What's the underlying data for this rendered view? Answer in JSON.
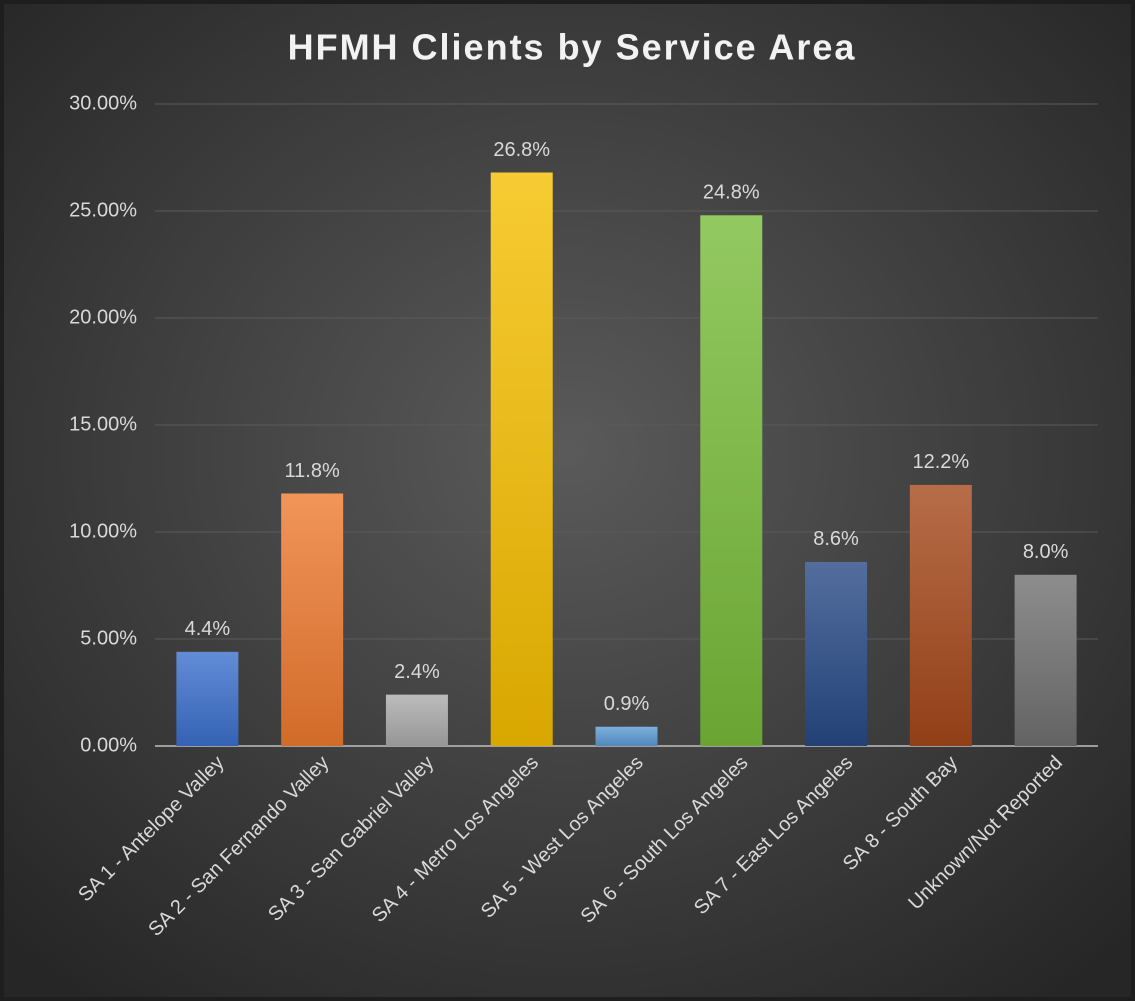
{
  "chart_data": {
    "type": "bar",
    "title": "HFMH Clients by Service Area",
    "categories": [
      "SA 1 - Antelope Valley",
      "SA 2 - San Fernando Valley",
      "SA 3 - San Gabriel Valley",
      "SA 4 - Metro Los Angeles",
      "SA 5 - West Los Angeles",
      "SA 6 - South Los Angeles",
      "SA 7 - East Los Angeles",
      "SA 8 - South Bay",
      "Unknown/Not Reported"
    ],
    "values": [
      4.4,
      11.8,
      2.4,
      26.8,
      0.9,
      24.8,
      8.6,
      12.2,
      8.0
    ],
    "value_labels": [
      "4.4%",
      "11.8%",
      "2.4%",
      "26.8%",
      "0.9%",
      "24.8%",
      "8.6%",
      "12.2%",
      "8.0%"
    ],
    "colors": [
      "#3b6fcc",
      "#ee7a30",
      "#ababab",
      "#f5be00",
      "#5b9bd5",
      "#78bb3a",
      "#284a86",
      "#a5481a",
      "#707070"
    ],
    "ylim": [
      0,
      30
    ],
    "yticks": [
      {
        "value": 0,
        "label": "0.00%"
      },
      {
        "value": 5,
        "label": "5.00%"
      },
      {
        "value": 10,
        "label": "10.00%"
      },
      {
        "value": 15,
        "label": "15.00%"
      },
      {
        "value": 20,
        "label": "20.00%"
      },
      {
        "value": 25,
        "label": "25.00%"
      },
      {
        "value": 30,
        "label": "30.00%"
      }
    ],
    "grid": true
  }
}
